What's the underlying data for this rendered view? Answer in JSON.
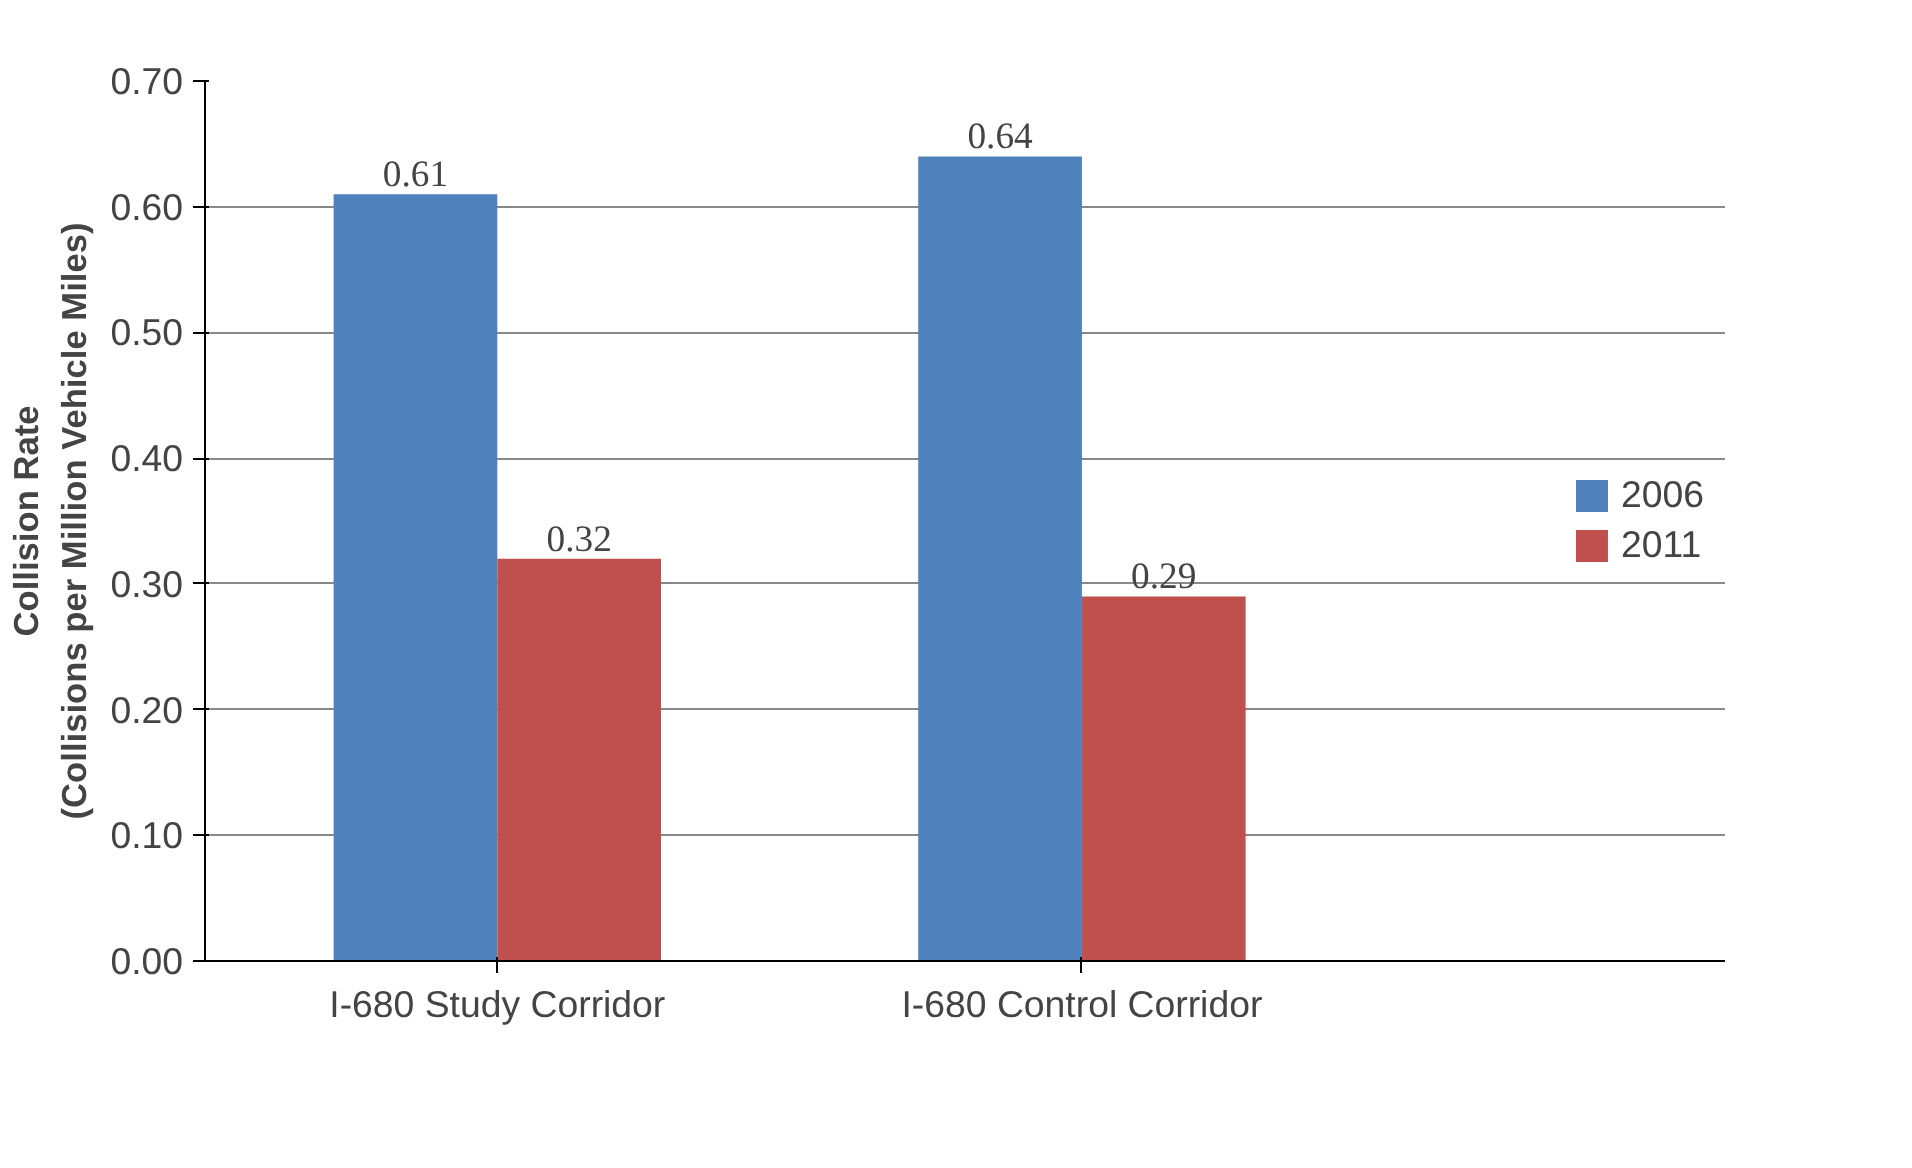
{
  "chart_data": {
    "type": "bar",
    "ylabel": "Collision Rate\n(Collisions per Million Vehicle Miles)",
    "categories": [
      "I-680 Study Corridor",
      "I-680 Control Corridor"
    ],
    "series": [
      {
        "name": "2006",
        "color": "#4f81bd",
        "values": [
          0.61,
          0.64
        ]
      },
      {
        "name": "2011",
        "color": "#c0504d",
        "values": [
          0.32,
          0.29
        ]
      }
    ],
    "ylim": [
      0,
      0.7
    ],
    "yticks": [
      {
        "value": 0,
        "label": "0.00"
      },
      {
        "value": 0.1,
        "label": "0.10"
      },
      {
        "value": 0.2,
        "label": "0.20"
      },
      {
        "value": 0.3,
        "label": "0.30"
      },
      {
        "value": 0.4,
        "label": "0.40"
      },
      {
        "value": 0.5,
        "label": "0.50"
      },
      {
        "value": 0.6,
        "label": "0.60"
      },
      {
        "value": 0.7,
        "label": "0.70"
      }
    ],
    "grid": "y",
    "legend": "right",
    "data_labels": true
  }
}
